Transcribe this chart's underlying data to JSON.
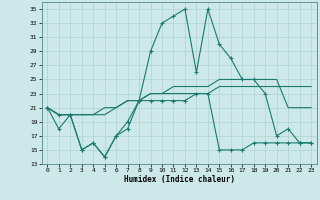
{
  "xlabel": "Humidex (Indice chaleur)",
  "x": [
    0,
    1,
    2,
    3,
    4,
    5,
    6,
    7,
    8,
    9,
    10,
    11,
    12,
    13,
    14,
    15,
    16,
    17,
    18,
    19,
    20,
    21,
    22,
    23
  ],
  "line1_y": [
    21,
    18,
    20,
    15,
    16,
    14,
    17,
    19,
    22,
    29,
    33,
    34,
    35,
    26,
    35,
    30,
    28,
    25,
    25,
    23,
    17,
    18,
    16,
    16
  ],
  "line2_y": [
    21,
    20,
    20,
    15,
    16,
    14,
    17,
    18,
    22,
    22,
    22,
    22,
    22,
    23,
    23,
    15,
    15,
    15,
    16,
    16,
    16,
    16,
    16,
    16
  ],
  "line3_y": [
    21,
    20,
    20,
    20,
    20,
    20,
    21,
    22,
    22,
    23,
    23,
    24,
    24,
    24,
    24,
    25,
    25,
    25,
    25,
    25,
    25,
    21,
    21,
    21
  ],
  "line4_y": [
    21,
    20,
    20,
    20,
    20,
    21,
    21,
    22,
    22,
    23,
    23,
    23,
    23,
    23,
    23,
    24,
    24,
    24,
    24,
    24,
    24,
    24,
    24,
    24
  ],
  "color": "#1a7a6e",
  "bg_color": "#cce8e8",
  "grid_color": "#aacccc",
  "ylim": [
    13,
    36
  ],
  "yticks": [
    13,
    15,
    17,
    19,
    21,
    23,
    25,
    27,
    29,
    31,
    33,
    35
  ],
  "xlim": [
    -0.5,
    23.5
  ],
  "xticks": [
    0,
    1,
    2,
    3,
    4,
    5,
    6,
    7,
    8,
    9,
    10,
    11,
    12,
    13,
    14,
    15,
    16,
    17,
    18,
    19,
    20,
    21,
    22,
    23
  ],
  "marker_lines": [
    0,
    1
  ],
  "no_marker_lines": [
    2,
    3
  ]
}
